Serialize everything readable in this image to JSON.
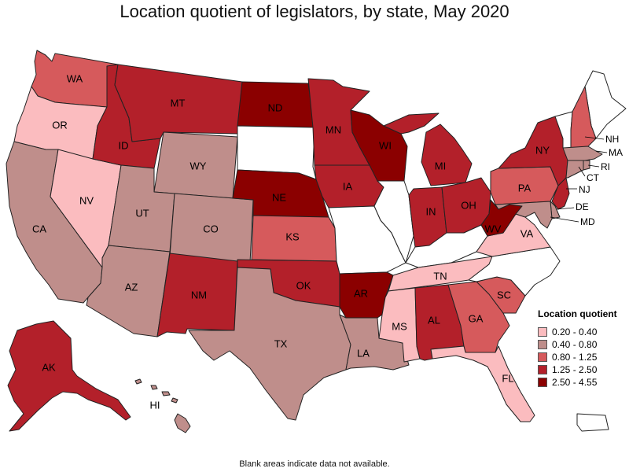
{
  "title": "Location quotient of legislators, by state, May 2020",
  "footnote": "Blank areas indicate data not available.",
  "legend": {
    "title": "Location quotient",
    "bins": [
      {
        "label": "0.20 - 0.40",
        "color": "#fbbcbf"
      },
      {
        "label": "0.40 - 0.80",
        "color": "#bf8e8b"
      },
      {
        "label": "0.80 - 1.25",
        "color": "#d65a5c"
      },
      {
        "label": "1.25 - 2.50",
        "color": "#b3202a"
      },
      {
        "label": "2.50 - 4.55",
        "color": "#8b0000"
      }
    ]
  },
  "no_data_color": "#ffffff",
  "states": [
    {
      "abbr": "WA",
      "bin": 2
    },
    {
      "abbr": "OR",
      "bin": 0
    },
    {
      "abbr": "CA",
      "bin": 1
    },
    {
      "abbr": "NV",
      "bin": 0
    },
    {
      "abbr": "ID",
      "bin": 3
    },
    {
      "abbr": "MT",
      "bin": 3
    },
    {
      "abbr": "WY",
      "bin": 1
    },
    {
      "abbr": "UT",
      "bin": 1
    },
    {
      "abbr": "CO",
      "bin": 1
    },
    {
      "abbr": "AZ",
      "bin": 1
    },
    {
      "abbr": "NM",
      "bin": 3
    },
    {
      "abbr": "ND",
      "bin": 4
    },
    {
      "abbr": "SD",
      "bin": null
    },
    {
      "abbr": "NE",
      "bin": 4
    },
    {
      "abbr": "KS",
      "bin": 2
    },
    {
      "abbr": "OK",
      "bin": 3
    },
    {
      "abbr": "TX",
      "bin": 1
    },
    {
      "abbr": "MN",
      "bin": 3
    },
    {
      "abbr": "IA",
      "bin": 3
    },
    {
      "abbr": "MO",
      "bin": null
    },
    {
      "abbr": "AR",
      "bin": 4
    },
    {
      "abbr": "LA",
      "bin": 1
    },
    {
      "abbr": "WI",
      "bin": 4
    },
    {
      "abbr": "IL",
      "bin": null
    },
    {
      "abbr": "MI",
      "bin": 3
    },
    {
      "abbr": "IN",
      "bin": 3
    },
    {
      "abbr": "OH",
      "bin": 3
    },
    {
      "abbr": "KY",
      "bin": null
    },
    {
      "abbr": "TN",
      "bin": 0
    },
    {
      "abbr": "MS",
      "bin": 0
    },
    {
      "abbr": "AL",
      "bin": 3
    },
    {
      "abbr": "GA",
      "bin": 2
    },
    {
      "abbr": "FL",
      "bin": 0
    },
    {
      "abbr": "SC",
      "bin": 2
    },
    {
      "abbr": "NC",
      "bin": null
    },
    {
      "abbr": "VA",
      "bin": 0
    },
    {
      "abbr": "WV",
      "bin": 4
    },
    {
      "abbr": "PA",
      "bin": 2
    },
    {
      "abbr": "NY",
      "bin": 3
    },
    {
      "abbr": "ME",
      "bin": null
    },
    {
      "abbr": "VT",
      "bin": null
    },
    {
      "abbr": "NH",
      "bin": 2
    },
    {
      "abbr": "MA",
      "bin": 1
    },
    {
      "abbr": "RI",
      "bin": 1
    },
    {
      "abbr": "CT",
      "bin": 1
    },
    {
      "abbr": "NJ",
      "bin": 3
    },
    {
      "abbr": "DE",
      "bin": 1
    },
    {
      "abbr": "MD",
      "bin": 1
    },
    {
      "abbr": "AK",
      "bin": 3
    },
    {
      "abbr": "HI",
      "bin": 1
    },
    {
      "abbr": "PR",
      "bin": null
    }
  ]
}
